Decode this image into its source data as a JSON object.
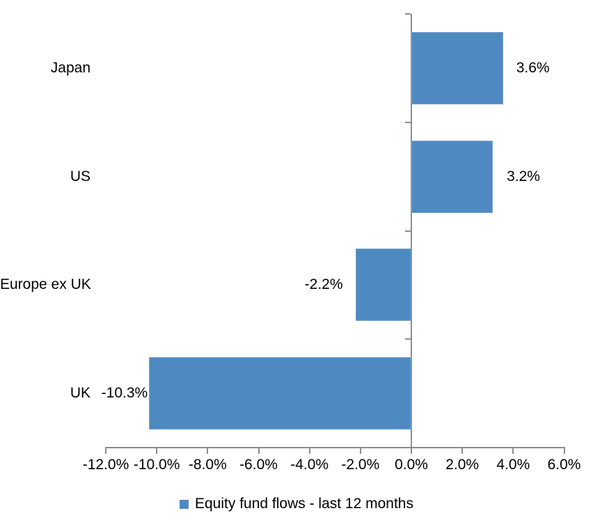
{
  "chart_data": {
    "type": "bar",
    "orientation": "horizontal",
    "title": "",
    "series_name": "Equity fund flows - last 12 months",
    "categories": [
      "Japan",
      "US",
      "Europe ex UK",
      "UK"
    ],
    "values": [
      3.6,
      3.2,
      -2.2,
      -10.3
    ],
    "data_labels": [
      "3.6%",
      "3.2%",
      "-2.2%",
      "-10.3%"
    ],
    "xlim": [
      -12,
      6
    ],
    "x_ticks": [
      -12,
      -10,
      -8,
      -6,
      -4,
      -2,
      0,
      2,
      4,
      6
    ],
    "x_tick_labels": [
      "-12.0%",
      "-10.0%",
      "-8.0%",
      "-6.0%",
      "-4.0%",
      "-2.0%",
      "0.0%",
      "2.0%",
      "4.0%",
      "6.0%"
    ],
    "grid": false,
    "legend_position": "bottom",
    "colors": {
      "bar": "#4E8AC1",
      "bar_border": "#7FA5CE",
      "axis": "#8C8C8C",
      "text": "#000000",
      "background": "#FFFFFF"
    }
  }
}
